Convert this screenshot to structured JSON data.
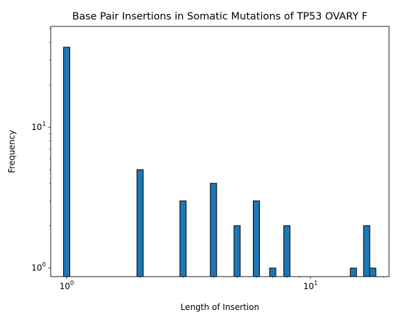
{
  "chart_data": {
    "type": "bar",
    "title": "Base Pair Insertions in Somatic Mutations of TP53 OVARY F",
    "xlabel": "Length of Insertion",
    "ylabel": "Frequency",
    "x_scale": "log",
    "y_scale": "log",
    "xlim": [
      0.86,
      21
    ],
    "ylim": [
      0.87,
      52
    ],
    "x_ticks": [
      {
        "value": 1,
        "base": "10",
        "exp": "0"
      },
      {
        "value": 10,
        "base": "10",
        "exp": "1"
      }
    ],
    "y_ticks": [
      {
        "value": 1,
        "base": "10",
        "exp": "0"
      },
      {
        "value": 10,
        "base": "10",
        "exp": "1"
      }
    ],
    "x": [
      1,
      2,
      3,
      4,
      5,
      6,
      7,
      8,
      15,
      17,
      18
    ],
    "values": [
      37,
      5,
      3,
      4,
      2,
      3,
      1,
      2,
      1,
      2,
      1
    ],
    "bar_color": "#1f77b4",
    "edge_color": "#000000",
    "grid": false
  }
}
